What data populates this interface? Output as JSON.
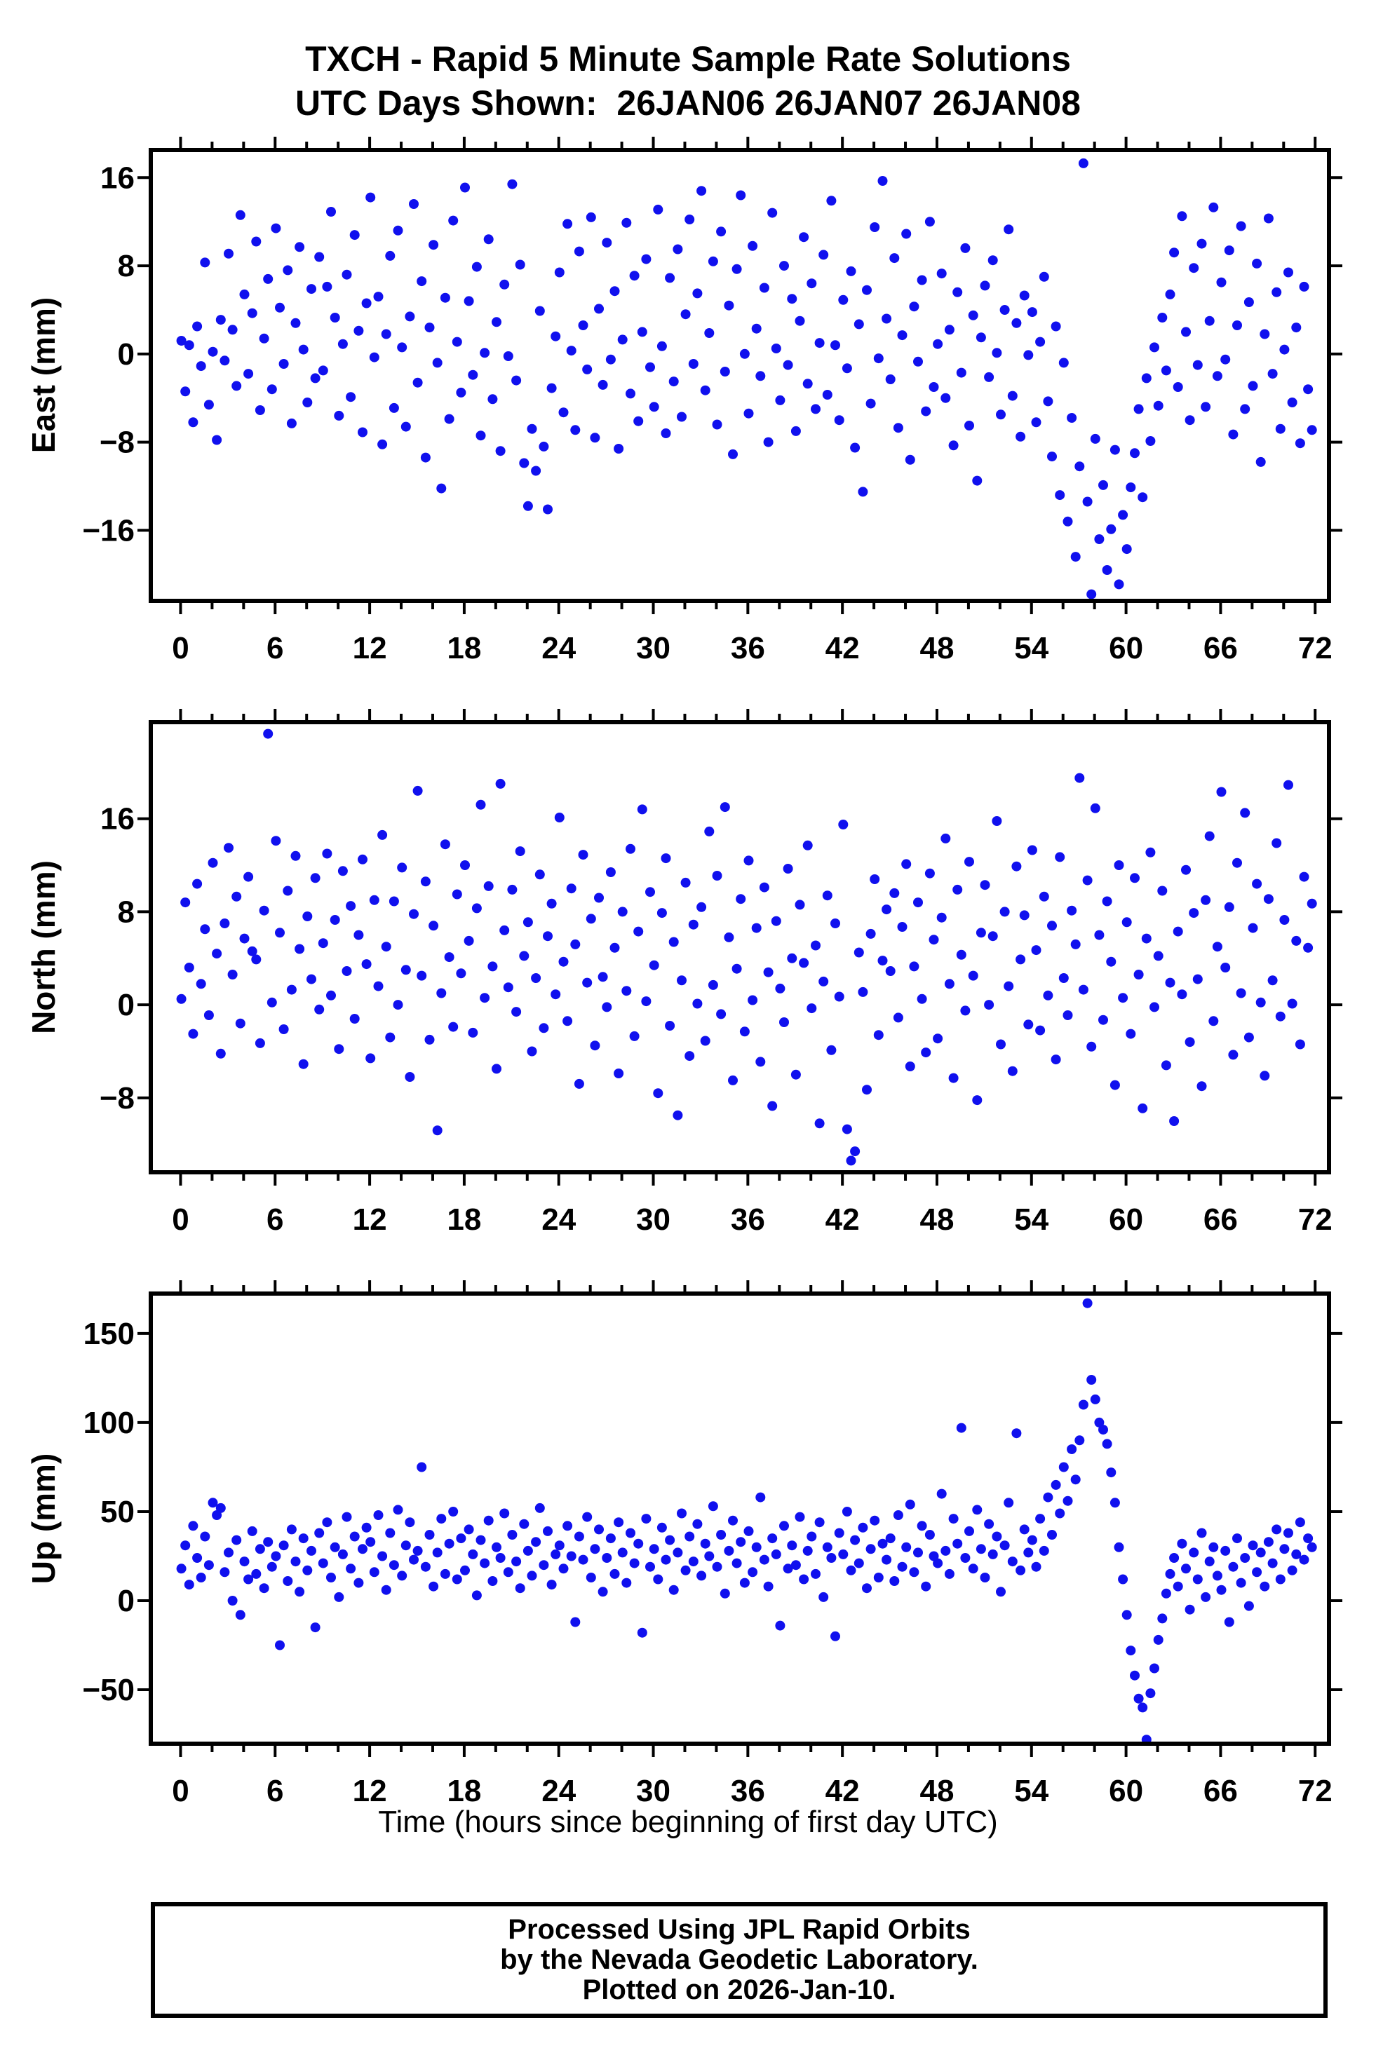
{
  "title": {
    "line1": "TXCH - Rapid 5 Minute Sample Rate Solutions",
    "line2": "UTC Days Shown:  26JAN06 26JAN07 26JAN08"
  },
  "footer": {
    "line1": "Processed Using JPL Rapid Orbits",
    "line2": "by the Nevada Geodetic Laboratory.",
    "line3": "Plotted on 2026-Jan-10."
  },
  "colors": {
    "dot": "#1010ee",
    "frame": "#000000",
    "background": "#ffffff"
  },
  "marker": {
    "radius": 7
  },
  "xaxis": {
    "title": "Time (hours since beginning of first day UTC)",
    "ticks": [
      0,
      6,
      12,
      18,
      24,
      30,
      36,
      42,
      48,
      54,
      60,
      66,
      72
    ],
    "minor_step": 2,
    "lim": [
      -1.89,
      72.88
    ]
  },
  "chart_data": [
    {
      "type": "scatter",
      "name": "east",
      "ylabel": "East (mm)",
      "yticks": [
        -16,
        -8,
        0,
        8,
        16
      ],
      "ylim": [
        -22.4,
        18.5
      ],
      "x_start": 0.05,
      "x_step": 0.25,
      "values": [
        1.2,
        -3.4,
        0.8,
        -6.2,
        2.5,
        -1.1,
        8.3,
        -4.6,
        0.2,
        -7.8,
        3.1,
        -0.6,
        9.1,
        2.2,
        -2.9,
        12.6,
        5.4,
        -1.8,
        3.7,
        10.2,
        -5.1,
        1.4,
        6.8,
        -3.2,
        11.4,
        4.2,
        -0.9,
        7.6,
        -6.3,
        2.8,
        9.7,
        0.4,
        -4.4,
        5.9,
        -2.2,
        8.8,
        -1.5,
        6.1,
        12.9,
        3.3,
        -5.6,
        0.9,
        7.2,
        -3.9,
        10.8,
        2.1,
        -7.1,
        4.6,
        14.2,
        -0.3,
        5.2,
        -8.2,
        1.8,
        8.9,
        -4.9,
        11.2,
        0.6,
        -6.6,
        3.4,
        13.6,
        -2.6,
        6.6,
        -9.4,
        2.4,
        9.9,
        -0.8,
        -12.2,
        5.1,
        -5.9,
        12.1,
        1.1,
        -3.5,
        15.1,
        4.8,
        -1.9,
        7.9,
        -7.4,
        0.1,
        10.4,
        -4.1,
        2.9,
        -8.8,
        6.3,
        -0.2,
        15.4,
        -2.4,
        8.1,
        -9.9,
        -13.8,
        -6.8,
        -10.6,
        3.9,
        -8.4,
        -14.1,
        -3.1,
        1.6,
        7.4,
        -5.3,
        11.8,
        0.3,
        -6.9,
        9.3,
        2.6,
        -1.4,
        12.4,
        -7.6,
        4.1,
        -2.8,
        10.1,
        -0.5,
        5.7,
        -8.6,
        1.3,
        11.9,
        -3.6,
        7.1,
        -6.1,
        2.0,
        8.6,
        -1.2,
        -4.8,
        13.1,
        0.7,
        -7.2,
        6.9,
        -2.5,
        9.5,
        -5.7,
        3.6,
        12.2,
        -0.9,
        5.5,
        14.8,
        -3.3,
        1.9,
        8.4,
        -6.4,
        11.1,
        -1.6,
        4.4,
        -9.1,
        7.7,
        14.4,
        0.0,
        -5.4,
        9.8,
        2.3,
        -2.0,
        6.0,
        -8.0,
        12.8,
        0.5,
        -4.2,
        8.0,
        -1.0,
        5.0,
        -7.0,
        3.0,
        10.6,
        -2.7,
        6.4,
        -5.0,
        1.0,
        9.0,
        -3.7,
        13.9,
        0.8,
        -6.0,
        4.9,
        -1.3,
        7.5,
        -8.5,
        2.7,
        -12.5,
        5.8,
        -4.5,
        11.5,
        -0.4,
        15.7,
        3.2,
        -2.3,
        8.7,
        -6.7,
        1.7,
        10.9,
        -9.6,
        4.3,
        -0.7,
        6.7,
        -5.2,
        12.0,
        -3.0,
        0.9,
        7.3,
        -4.0,
        2.2,
        -8.3,
        5.6,
        -1.7,
        9.6,
        -6.5,
        3.5,
        -11.5,
        1.5,
        6.2,
        -2.1,
        8.5,
        0.1,
        -5.5,
        4.0,
        11.3,
        -3.8,
        2.8,
        -7.5,
        5.3,
        -0.1,
        3.8,
        -6.2,
        1.1,
        7.0,
        -4.3,
        -9.3,
        2.5,
        -12.8,
        -0.8,
        -15.2,
        -5.8,
        -18.4,
        -10.2,
        17.3,
        -13.4,
        -21.8,
        -7.7,
        -16.8,
        -11.9,
        -19.6,
        -15.9,
        -8.7,
        -20.9,
        -14.6,
        -17.7,
        -12.1,
        -9.0,
        -5.0,
        -13.0,
        -2.2,
        -7.9,
        0.6,
        -4.7,
        3.3,
        -1.5,
        5.4,
        9.2,
        -3.0,
        12.5,
        2.0,
        -6.0,
        7.8,
        -1.0,
        10.0,
        -4.8,
        3.0,
        13.3,
        -2.0,
        6.5,
        -0.5,
        9.4,
        -7.3,
        2.6,
        11.6,
        -5.0,
        4.7,
        -2.9,
        8.2,
        -9.8,
        1.8,
        12.3,
        -1.8,
        5.6,
        -6.8,
        0.4,
        7.4,
        -4.4,
        2.4,
        -8.1,
        6.1,
        -3.2,
        -6.9
      ]
    },
    {
      "type": "scatter",
      "name": "north",
      "ylabel": "North (mm)",
      "yticks": [
        -8,
        0,
        8,
        16
      ],
      "ylim": [
        -14.4,
        24.3
      ],
      "x_start": 0.05,
      "x_step": 0.25,
      "values": [
        0.5,
        8.8,
        3.2,
        -2.5,
        10.4,
        1.8,
        6.5,
        -0.9,
        12.2,
        4.4,
        -4.2,
        7.0,
        13.5,
        2.6,
        9.3,
        -1.6,
        5.7,
        11.0,
        4.6,
        3.9,
        -3.3,
        8.1,
        23.3,
        0.2,
        14.1,
        6.2,
        -2.1,
        9.8,
        1.3,
        12.8,
        4.8,
        -5.1,
        7.6,
        2.2,
        10.9,
        -0.4,
        5.3,
        13.0,
        0.8,
        7.3,
        -3.8,
        11.5,
        2.9,
        8.5,
        -1.2,
        6.0,
        12.5,
        3.5,
        -4.6,
        9.0,
        1.6,
        14.6,
        5.0,
        -2.8,
        8.9,
        0.0,
        11.8,
        3.0,
        -6.2,
        7.8,
        18.4,
        2.5,
        10.6,
        -3.0,
        6.8,
        -10.8,
        1.0,
        13.8,
        4.1,
        -1.9,
        9.5,
        2.7,
        12.0,
        5.5,
        -2.4,
        8.3,
        17.2,
        0.6,
        10.2,
        3.3,
        -5.5,
        19.0,
        6.4,
        1.5,
        9.9,
        -0.6,
        13.2,
        4.2,
        7.1,
        -4.0,
        2.3,
        11.2,
        -2.0,
        5.9,
        8.7,
        0.9,
        16.1,
        3.7,
        -1.4,
        10.0,
        5.2,
        -6.8,
        12.9,
        1.9,
        7.4,
        -3.5,
        9.2,
        2.4,
        -0.2,
        11.4,
        4.9,
        -5.9,
        8.0,
        1.2,
        13.4,
        -2.7,
        6.3,
        16.8,
        0.3,
        9.7,
        3.4,
        -7.6,
        7.9,
        12.6,
        -1.8,
        5.4,
        -9.5,
        2.1,
        10.5,
        -4.4,
        6.9,
        0.1,
        8.4,
        -3.1,
        14.9,
        1.7,
        11.1,
        -0.8,
        17.0,
        5.8,
        -6.5,
        3.1,
        9.1,
        -2.3,
        12.4,
        0.4,
        6.6,
        -4.9,
        10.1,
        2.8,
        -8.7,
        7.2,
        1.4,
        -1.5,
        11.7,
        4.0,
        -6.0,
        8.6,
        3.6,
        13.7,
        -0.3,
        5.1,
        -10.2,
        2.0,
        9.4,
        -3.9,
        7.0,
        0.7,
        15.5,
        -10.7,
        -13.4,
        -12.6,
        4.5,
        1.1,
        -7.3,
        6.1,
        10.8,
        -2.6,
        3.8,
        8.2,
        2.9,
        9.6,
        -1.1,
        6.7,
        12.1,
        -5.3,
        3.3,
        8.8,
        0.5,
        -4.1,
        11.3,
        5.6,
        -2.9,
        7.5,
        14.3,
        1.8,
        -6.3,
        9.9,
        4.3,
        -0.5,
        12.3,
        2.5,
        -8.2,
        6.2,
        10.3,
        0.0,
        5.9,
        15.8,
        -3.4,
        8.0,
        1.6,
        -5.7,
        11.9,
        3.9,
        7.7,
        -1.7,
        13.3,
        4.7,
        -2.2,
        9.3,
        0.8,
        6.8,
        -4.7,
        12.7,
        2.3,
        -0.9,
        8.1,
        5.2,
        19.5,
        1.3,
        10.7,
        -3.6,
        16.9,
        6.0,
        -1.3,
        8.9,
        3.7,
        -6.9,
        12.0,
        0.6,
        7.1,
        -2.5,
        10.9,
        2.6,
        -8.9,
        5.7,
        13.1,
        -0.2,
        4.2,
        9.8,
        -5.2,
        1.9,
        -10.0,
        6.3,
        0.9,
        11.6,
        -3.2,
        7.9,
        2.2,
        -7.0,
        9.0,
        14.5,
        -1.4,
        5.0,
        18.3,
        3.2,
        8.4,
        -4.3,
        12.2,
        1.0,
        16.5,
        -2.8,
        6.6,
        10.4,
        0.2,
        -6.1,
        9.1,
        2.1,
        13.9,
        -1.0,
        7.3,
        18.9,
        0.1,
        5.5,
        -3.4,
        11.0,
        4.9,
        8.7
      ]
    },
    {
      "type": "scatter",
      "name": "up",
      "ylabel": "Up (mm)",
      "yticks": [
        -50,
        0,
        50,
        100,
        150
      ],
      "ylim": [
        -80.3,
        172.4
      ],
      "x_start": 0.05,
      "x_step": 0.25,
      "values": [
        18,
        31,
        9,
        42,
        24,
        13,
        36,
        20,
        55,
        48,
        52,
        16,
        27,
        0,
        34,
        -8,
        22,
        12,
        39,
        15,
        29,
        7,
        33,
        19,
        25,
        -25,
        31,
        11,
        40,
        22,
        5,
        35,
        17,
        28,
        -15,
        38,
        21,
        44,
        13,
        30,
        2,
        26,
        47,
        18,
        36,
        10,
        29,
        41,
        33,
        16,
        48,
        25,
        6,
        38,
        20,
        51,
        14,
        31,
        44,
        23,
        28,
        75,
        19,
        37,
        8,
        27,
        46,
        15,
        32,
        50,
        12,
        35,
        17,
        40,
        26,
        3,
        34,
        21,
        45,
        11,
        30,
        24,
        49,
        16,
        37,
        22,
        7,
        43,
        28,
        14,
        33,
        52,
        20,
        39,
        9,
        26,
        31,
        18,
        42,
        25,
        -12,
        36,
        23,
        47,
        13,
        29,
        40,
        5,
        24,
        35,
        15,
        44,
        27,
        10,
        38,
        21,
        32,
        -18,
        46,
        19,
        29,
        12,
        41,
        23,
        34,
        6,
        27,
        49,
        17,
        36,
        22,
        43,
        14,
        32,
        25,
        53,
        19,
        37,
        4,
        28,
        45,
        21,
        33,
        10,
        39,
        16,
        30,
        58,
        23,
        8,
        35,
        26,
        -14,
        42,
        18,
        31,
        20,
        47,
        12,
        28,
        36,
        15,
        44,
        2,
        30,
        24,
        -20,
        38,
        26,
        50,
        17,
        34,
        21,
        41,
        7,
        29,
        45,
        13,
        32,
        23,
        35,
        11,
        48,
        19,
        30,
        54,
        16,
        27,
        42,
        8,
        37,
        25,
        21,
        60,
        28,
        15,
        46,
        32,
        97,
        24,
        39,
        18,
        51,
        29,
        13,
        43,
        26,
        36,
        5,
        31,
        55,
        22,
        94,
        17,
        40,
        27,
        34,
        19,
        46,
        28,
        58,
        37,
        65,
        49,
        75,
        56,
        85,
        68,
        90,
        110,
        167,
        124,
        113,
        100,
        96,
        88,
        72,
        55,
        30,
        12,
        -8,
        -28,
        -42,
        -55,
        -60,
        -78,
        -52,
        -38,
        -22,
        -10,
        4,
        15,
        24,
        8,
        32,
        18,
        -5,
        27,
        12,
        38,
        2,
        22,
        30,
        14,
        6,
        28,
        -12,
        19,
        35,
        10,
        24,
        -3,
        31,
        16,
        27,
        8,
        33,
        21,
        40,
        12,
        29,
        38,
        17,
        26,
        44,
        23,
        35,
        30
      ]
    }
  ]
}
